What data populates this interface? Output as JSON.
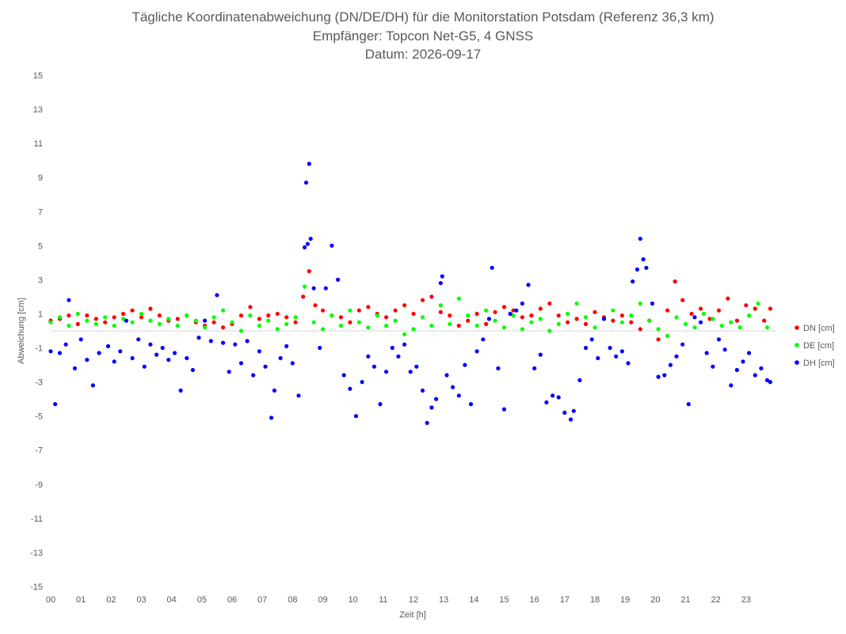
{
  "chart_data": {
    "type": "scatter",
    "title": "Tägliche Koordinatenabweichung (DN/DE/DH) für die Monitorstation Potsdam (Referenz 36,3 km)",
    "subtitle": "Empfänger: Topcon Net-G5, 4 GNSS",
    "date_line": "Datum: 2026-09-17",
    "xlabel": "Zeit [h]",
    "ylabel": "Abweichung [cm]",
    "xlim": [
      0,
      24
    ],
    "ylim": [
      -15,
      15
    ],
    "x_ticks": [
      "00",
      "01",
      "02",
      "03",
      "04",
      "05",
      "06",
      "07",
      "08",
      "09",
      "10",
      "11",
      "12",
      "13",
      "14",
      "15",
      "16",
      "17",
      "18",
      "19",
      "20",
      "21",
      "22",
      "23"
    ],
    "y_ticks": [
      15,
      13,
      11,
      9,
      7,
      5,
      3,
      1,
      -1,
      -3,
      -5,
      -7,
      -9,
      -11,
      -13,
      -15
    ],
    "grid": false,
    "legend_position": "right",
    "series": [
      {
        "name": "DN [cm]",
        "color": "#ff0000",
        "points": [
          [
            0.0,
            0.6
          ],
          [
            0.3,
            0.7
          ],
          [
            0.6,
            0.9
          ],
          [
            0.9,
            0.4
          ],
          [
            1.2,
            0.9
          ],
          [
            1.5,
            0.7
          ],
          [
            1.8,
            0.5
          ],
          [
            2.1,
            0.8
          ],
          [
            2.4,
            1.0
          ],
          [
            2.7,
            1.2
          ],
          [
            3.0,
            0.8
          ],
          [
            3.3,
            1.3
          ],
          [
            3.6,
            0.9
          ],
          [
            3.9,
            0.6
          ],
          [
            4.2,
            0.7
          ],
          [
            4.5,
            0.9
          ],
          [
            4.8,
            0.5
          ],
          [
            5.1,
            0.3
          ],
          [
            5.4,
            0.5
          ],
          [
            5.7,
            0.2
          ],
          [
            6.0,
            0.4
          ],
          [
            6.3,
            0.9
          ],
          [
            6.6,
            1.4
          ],
          [
            6.9,
            0.7
          ],
          [
            7.2,
            0.9
          ],
          [
            7.5,
            1.0
          ],
          [
            7.8,
            0.8
          ],
          [
            8.1,
            0.5
          ],
          [
            8.35,
            2.0
          ],
          [
            8.55,
            3.5
          ],
          [
            8.75,
            1.5
          ],
          [
            9.0,
            1.2
          ],
          [
            9.3,
            0.9
          ],
          [
            9.6,
            0.8
          ],
          [
            9.9,
            0.5
          ],
          [
            10.2,
            1.2
          ],
          [
            10.5,
            1.4
          ],
          [
            10.8,
            1.0
          ],
          [
            11.1,
            0.8
          ],
          [
            11.4,
            1.2
          ],
          [
            11.7,
            1.5
          ],
          [
            12.0,
            1.0
          ],
          [
            12.3,
            1.8
          ],
          [
            12.6,
            2.0
          ],
          [
            12.9,
            1.1
          ],
          [
            13.2,
            0.9
          ],
          [
            13.5,
            0.3
          ],
          [
            13.8,
            0.6
          ],
          [
            14.1,
            1.0
          ],
          [
            14.4,
            0.4
          ],
          [
            14.7,
            1.1
          ],
          [
            15.0,
            1.4
          ],
          [
            15.3,
            1.2
          ],
          [
            15.6,
            0.8
          ],
          [
            15.9,
            0.9
          ],
          [
            16.2,
            1.3
          ],
          [
            16.5,
            1.6
          ],
          [
            16.8,
            0.9
          ],
          [
            17.1,
            0.5
          ],
          [
            17.4,
            0.7
          ],
          [
            17.7,
            0.4
          ],
          [
            18.0,
            1.1
          ],
          [
            18.3,
            0.8
          ],
          [
            18.6,
            0.6
          ],
          [
            18.9,
            0.9
          ],
          [
            19.2,
            0.5
          ],
          [
            19.5,
            0.1
          ],
          [
            19.8,
            0.6
          ],
          [
            20.1,
            -0.5
          ],
          [
            20.4,
            1.2
          ],
          [
            20.65,
            2.9
          ],
          [
            20.9,
            1.8
          ],
          [
            21.2,
            1.0
          ],
          [
            21.5,
            1.3
          ],
          [
            21.8,
            0.7
          ],
          [
            22.1,
            1.2
          ],
          [
            22.4,
            1.9
          ],
          [
            22.7,
            0.6
          ],
          [
            23.0,
            1.5
          ],
          [
            23.3,
            1.3
          ],
          [
            23.6,
            0.6
          ],
          [
            23.8,
            1.3
          ]
        ]
      },
      {
        "name": "DE [cm]",
        "color": "#00ff00",
        "points": [
          [
            0.0,
            0.5
          ],
          [
            0.3,
            0.8
          ],
          [
            0.6,
            0.3
          ],
          [
            0.9,
            1.0
          ],
          [
            1.2,
            0.6
          ],
          [
            1.5,
            0.4
          ],
          [
            1.8,
            0.8
          ],
          [
            2.1,
            0.3
          ],
          [
            2.4,
            0.7
          ],
          [
            2.7,
            0.5
          ],
          [
            3.0,
            1.0
          ],
          [
            3.3,
            0.6
          ],
          [
            3.6,
            0.4
          ],
          [
            3.9,
            0.7
          ],
          [
            4.2,
            0.3
          ],
          [
            4.5,
            0.9
          ],
          [
            4.8,
            0.6
          ],
          [
            5.1,
            0.2
          ],
          [
            5.4,
            0.8
          ],
          [
            5.7,
            1.2
          ],
          [
            6.0,
            0.5
          ],
          [
            6.3,
            0.0
          ],
          [
            6.6,
            0.9
          ],
          [
            6.9,
            0.3
          ],
          [
            7.2,
            0.6
          ],
          [
            7.5,
            0.1
          ],
          [
            7.8,
            0.4
          ],
          [
            8.1,
            0.8
          ],
          [
            8.4,
            2.6
          ],
          [
            8.7,
            0.5
          ],
          [
            9.0,
            0.1
          ],
          [
            9.3,
            0.9
          ],
          [
            9.6,
            0.3
          ],
          [
            9.9,
            1.2
          ],
          [
            10.2,
            0.5
          ],
          [
            10.5,
            0.2
          ],
          [
            10.8,
            0.9
          ],
          [
            11.1,
            0.3
          ],
          [
            11.4,
            0.6
          ],
          [
            11.7,
            -0.2
          ],
          [
            12.0,
            0.1
          ],
          [
            12.3,
            0.8
          ],
          [
            12.6,
            0.3
          ],
          [
            12.9,
            1.5
          ],
          [
            13.2,
            0.4
          ],
          [
            13.5,
            1.9
          ],
          [
            13.8,
            0.9
          ],
          [
            14.1,
            0.3
          ],
          [
            14.4,
            1.2
          ],
          [
            14.7,
            0.6
          ],
          [
            15.0,
            0.2
          ],
          [
            15.3,
            0.9
          ],
          [
            15.6,
            0.1
          ],
          [
            15.9,
            0.5
          ],
          [
            16.2,
            0.7
          ],
          [
            16.5,
            0.0
          ],
          [
            16.8,
            0.4
          ],
          [
            17.1,
            1.0
          ],
          [
            17.4,
            1.6
          ],
          [
            17.7,
            0.8
          ],
          [
            18.0,
            0.2
          ],
          [
            18.3,
            0.7
          ],
          [
            18.6,
            1.2
          ],
          [
            18.9,
            0.5
          ],
          [
            19.2,
            0.9
          ],
          [
            19.5,
            1.6
          ],
          [
            19.8,
            0.6
          ],
          [
            20.1,
            0.1
          ],
          [
            20.4,
            -0.3
          ],
          [
            20.7,
            0.8
          ],
          [
            21.0,
            0.4
          ],
          [
            21.3,
            0.2
          ],
          [
            21.6,
            1.0
          ],
          [
            21.9,
            0.7
          ],
          [
            22.2,
            0.3
          ],
          [
            22.5,
            0.5
          ],
          [
            22.8,
            0.2
          ],
          [
            23.1,
            0.9
          ],
          [
            23.4,
            1.6
          ],
          [
            23.7,
            0.2
          ]
        ]
      },
      {
        "name": "DH [cm]",
        "color": "#0000ff",
        "points": [
          [
            0.0,
            -1.2
          ],
          [
            0.15,
            -4.3
          ],
          [
            0.3,
            -1.3
          ],
          [
            0.5,
            -0.8
          ],
          [
            0.6,
            1.8
          ],
          [
            0.8,
            -2.2
          ],
          [
            1.0,
            -0.5
          ],
          [
            1.2,
            -1.7
          ],
          [
            1.4,
            -3.2
          ],
          [
            1.6,
            -1.3
          ],
          [
            1.9,
            -0.9
          ],
          [
            2.1,
            -1.8
          ],
          [
            2.3,
            -1.2
          ],
          [
            2.5,
            0.6
          ],
          [
            2.7,
            -1.6
          ],
          [
            2.9,
            -0.5
          ],
          [
            3.1,
            -2.1
          ],
          [
            3.3,
            -0.8
          ],
          [
            3.5,
            -1.4
          ],
          [
            3.7,
            -1.0
          ],
          [
            3.9,
            -1.7
          ],
          [
            4.1,
            -1.3
          ],
          [
            4.3,
            -3.5
          ],
          [
            4.5,
            -1.6
          ],
          [
            4.7,
            -2.3
          ],
          [
            4.9,
            -0.4
          ],
          [
            5.1,
            0.6
          ],
          [
            5.3,
            -0.6
          ],
          [
            5.5,
            2.1
          ],
          [
            5.7,
            -0.7
          ],
          [
            5.9,
            -2.4
          ],
          [
            6.1,
            -0.8
          ],
          [
            6.3,
            -1.9
          ],
          [
            6.5,
            -0.6
          ],
          [
            6.7,
            -2.6
          ],
          [
            6.9,
            -1.2
          ],
          [
            7.1,
            -2.1
          ],
          [
            7.3,
            -5.1
          ],
          [
            7.4,
            -3.5
          ],
          [
            7.6,
            -1.6
          ],
          [
            7.8,
            -0.9
          ],
          [
            8.0,
            -1.9
          ],
          [
            8.2,
            -3.8
          ],
          [
            8.4,
            4.9
          ],
          [
            8.45,
            8.7
          ],
          [
            8.55,
            9.8
          ],
          [
            8.6,
            5.4
          ],
          [
            8.5,
            5.1
          ],
          [
            8.7,
            2.5
          ],
          [
            8.9,
            -1.0
          ],
          [
            9.1,
            2.5
          ],
          [
            9.3,
            5.0
          ],
          [
            9.5,
            3.0
          ],
          [
            9.7,
            -2.6
          ],
          [
            9.9,
            -3.4
          ],
          [
            10.1,
            -5.0
          ],
          [
            10.3,
            -3.0
          ],
          [
            10.5,
            -1.5
          ],
          [
            10.7,
            -2.1
          ],
          [
            10.9,
            -4.3
          ],
          [
            11.1,
            -2.4
          ],
          [
            11.3,
            -1.0
          ],
          [
            11.5,
            -1.5
          ],
          [
            11.7,
            -0.8
          ],
          [
            11.9,
            -2.4
          ],
          [
            12.1,
            -2.1
          ],
          [
            12.3,
            -3.5
          ],
          [
            12.45,
            -5.4
          ],
          [
            12.6,
            -4.5
          ],
          [
            12.75,
            -4.0
          ],
          [
            12.9,
            2.8
          ],
          [
            12.95,
            3.2
          ],
          [
            13.1,
            -2.6
          ],
          [
            13.3,
            -3.3
          ],
          [
            13.5,
            -3.8
          ],
          [
            13.7,
            -2.0
          ],
          [
            13.9,
            -4.3
          ],
          [
            14.1,
            -1.2
          ],
          [
            14.3,
            -0.5
          ],
          [
            14.5,
            0.7
          ],
          [
            14.6,
            3.7
          ],
          [
            14.8,
            -2.2
          ],
          [
            15.0,
            -4.6
          ],
          [
            15.2,
            1.0
          ],
          [
            15.4,
            1.2
          ],
          [
            15.6,
            1.6
          ],
          [
            15.8,
            2.7
          ],
          [
            16.0,
            -2.2
          ],
          [
            16.2,
            -1.4
          ],
          [
            16.4,
            -4.2
          ],
          [
            16.6,
            -3.8
          ],
          [
            16.8,
            -3.9
          ],
          [
            17.0,
            -4.8
          ],
          [
            17.2,
            -5.2
          ],
          [
            17.3,
            -4.7
          ],
          [
            17.5,
            -2.9
          ],
          [
            17.7,
            -1.0
          ],
          [
            17.9,
            -0.5
          ],
          [
            18.1,
            -1.6
          ],
          [
            18.3,
            0.7
          ],
          [
            18.5,
            -1.0
          ],
          [
            18.7,
            -1.5
          ],
          [
            18.9,
            -1.2
          ],
          [
            19.1,
            -1.9
          ],
          [
            19.25,
            2.9
          ],
          [
            19.4,
            3.6
          ],
          [
            19.5,
            5.4
          ],
          [
            19.6,
            4.2
          ],
          [
            19.7,
            3.7
          ],
          [
            19.9,
            1.6
          ],
          [
            20.1,
            -2.7
          ],
          [
            20.3,
            -2.6
          ],
          [
            20.5,
            -2.0
          ],
          [
            20.7,
            -1.5
          ],
          [
            20.9,
            -0.8
          ],
          [
            21.1,
            -4.3
          ],
          [
            21.3,
            0.8
          ],
          [
            21.5,
            0.5
          ],
          [
            21.7,
            -1.3
          ],
          [
            21.9,
            -2.1
          ],
          [
            22.1,
            -0.5
          ],
          [
            22.3,
            -1.1
          ],
          [
            22.5,
            -3.2
          ],
          [
            22.7,
            -2.3
          ],
          [
            22.9,
            -1.8
          ],
          [
            23.1,
            -1.3
          ],
          [
            23.3,
            -2.6
          ],
          [
            23.5,
            -2.2
          ],
          [
            23.7,
            -2.9
          ],
          [
            23.8,
            -3.0
          ]
        ]
      }
    ]
  }
}
